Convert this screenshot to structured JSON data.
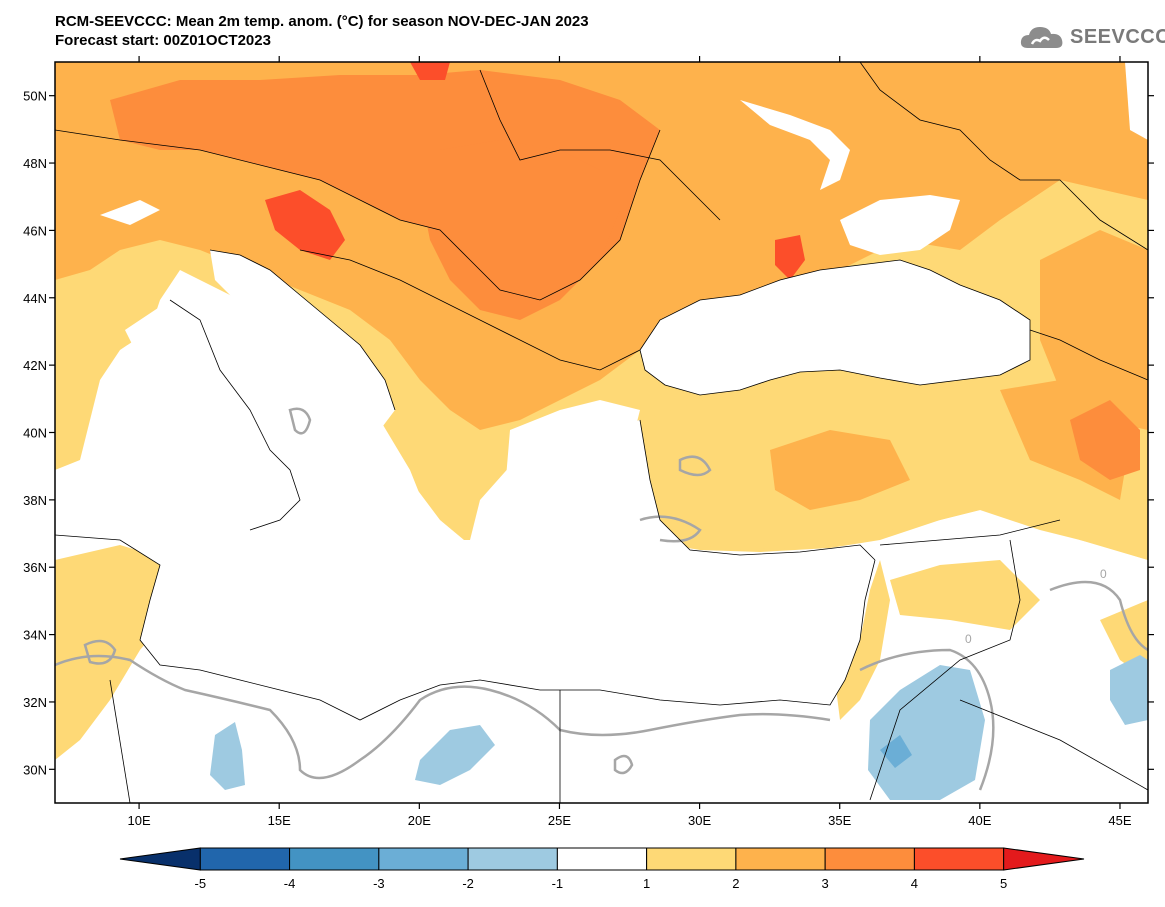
{
  "header": {
    "title_line1": "RCM-SEEVCCC: Mean 2m temp. anom. (°C) for season NOV-DEC-JAN 2023",
    "title_line2": "Forecast start: 00Z01OCT2023"
  },
  "logo": {
    "text": "SEEVCCC",
    "icon": "cloud-icon"
  },
  "map": {
    "lon_range": [
      7,
      46
    ],
    "lat_range": [
      29,
      51
    ],
    "lat_ticks": [
      {
        "v": 30,
        "label": "30N"
      },
      {
        "v": 32,
        "label": "32N"
      },
      {
        "v": 34,
        "label": "34N"
      },
      {
        "v": 36,
        "label": "36N"
      },
      {
        "v": 38,
        "label": "38N"
      },
      {
        "v": 40,
        "label": "40N"
      },
      {
        "v": 42,
        "label": "42N"
      },
      {
        "v": 44,
        "label": "44N"
      },
      {
        "v": 46,
        "label": "46N"
      },
      {
        "v": 48,
        "label": "48N"
      },
      {
        "v": 50,
        "label": "50N"
      }
    ],
    "lon_ticks": [
      {
        "v": 10,
        "label": "10E"
      },
      {
        "v": 15,
        "label": "15E"
      },
      {
        "v": 20,
        "label": "20E"
      },
      {
        "v": 25,
        "label": "25E"
      },
      {
        "v": 30,
        "label": "30E"
      },
      {
        "v": 35,
        "label": "35E"
      },
      {
        "v": 40,
        "label": "40E"
      },
      {
        "v": 45,
        "label": "45E"
      }
    ],
    "contour_label": "0"
  },
  "colorbar": {
    "labels": [
      "-5",
      "-4",
      "-3",
      "-2",
      "-1",
      "1",
      "2",
      "3",
      "4",
      "5"
    ],
    "colors": [
      "#08306b",
      "#2166ac",
      "#4393c3",
      "#6baed6",
      "#9ecae1",
      "#ffffff",
      "#fed976",
      "#feb24c",
      "#fd8d3c",
      "#fc4e2a",
      "#e31a1c"
    ]
  }
}
